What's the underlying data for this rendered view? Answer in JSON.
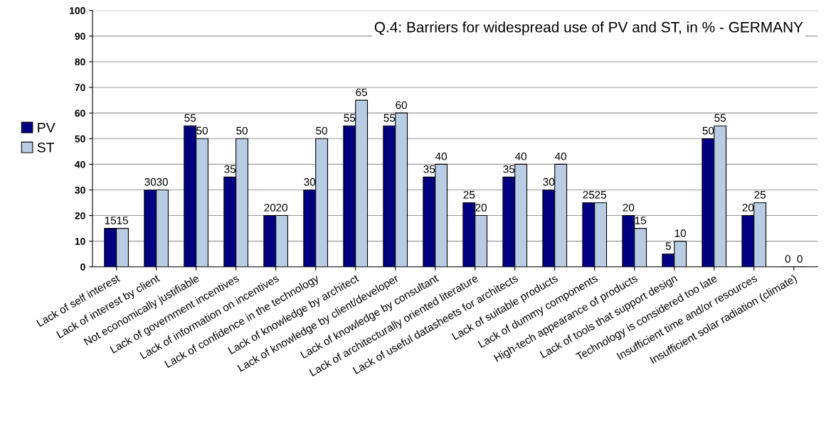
{
  "chart_data": {
    "type": "bar",
    "title": "Q.4: Barriers for widespread use of PV and ST, in % - GERMANY",
    "categories": [
      "Lack of self interest",
      "Lack of interest by client",
      "Not economically justifiable",
      "Lack of government incentives",
      "Lack of information on incentives",
      "Lack of confidence in the technology",
      "Lack of knowledge by architect",
      "Lack of knowledge by client/developer",
      "Lack of knowledge by consultant",
      "Lack of architecturally oriented literature",
      "Lack of useful datasheets for architects",
      "Lack of suitable products",
      "Lack of dummy components",
      "High-tech appearance of products",
      "Lack of tools that support design",
      "Technology is considered too late",
      "Insufficient time and/or resources",
      "Insufficient solar radiation (climate)"
    ],
    "series": [
      {
        "name": "PV",
        "color": "#000080",
        "values": [
          15,
          30,
          55,
          35,
          20,
          30,
          55,
          55,
          35,
          25,
          35,
          30,
          25,
          20,
          5,
          50,
          20,
          0
        ]
      },
      {
        "name": "ST",
        "color": "#b8cce4",
        "values": [
          15,
          30,
          50,
          50,
          20,
          50,
          65,
          60,
          40,
          20,
          40,
          40,
          25,
          15,
          10,
          55,
          25,
          0
        ]
      }
    ],
    "ylim": [
      0,
      100
    ],
    "yticks": [
      0,
      10,
      20,
      30,
      40,
      50,
      60,
      70,
      80,
      90,
      100
    ],
    "grid": "y",
    "legend": "left",
    "data_labels": true
  }
}
